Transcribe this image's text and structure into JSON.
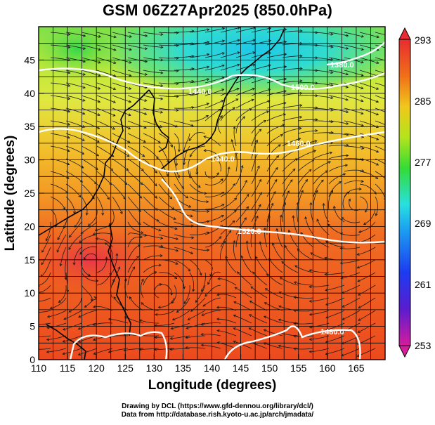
{
  "title": "GSM 06Z27Apr2025 (850.0hPa)",
  "credits": {
    "line1": "Drawing by DCL (https://www.gfd-dennou.org/library/dcl/)",
    "line2": "Data from http://database.rish.kyoto-u.ac.jp/arch/jmadata/"
  },
  "axes": {
    "xlabel": "Longitude (degrees)",
    "ylabel": "Latitude  (degrees)",
    "x_range": [
      110,
      170
    ],
    "y_range": [
      0,
      50
    ],
    "x_ticks": [
      "110",
      "115",
      "120",
      "125",
      "130",
      "135",
      "140",
      "145",
      "150",
      "155",
      "160",
      "165"
    ],
    "y_ticks": [
      "0",
      "5",
      "10",
      "15",
      "20",
      "25",
      "30",
      "35",
      "40",
      "45"
    ]
  },
  "colorbar": {
    "labels": [
      "293",
      "285",
      "277",
      "269",
      "261",
      "253"
    ],
    "min": 253,
    "max": 293,
    "stops": [
      "#d61c9c",
      "#3c1cd6",
      "#1c6cf0",
      "#2ee8e0",
      "#3cdc2c",
      "#c8e81c",
      "#f0a018",
      "#f05020",
      "#e83030"
    ]
  },
  "contour_labels": [
    "1380.0",
    "1440.0",
    "1500.0",
    "1440.0",
    "1460.0",
    "1520.0",
    "1480.0"
  ]
}
